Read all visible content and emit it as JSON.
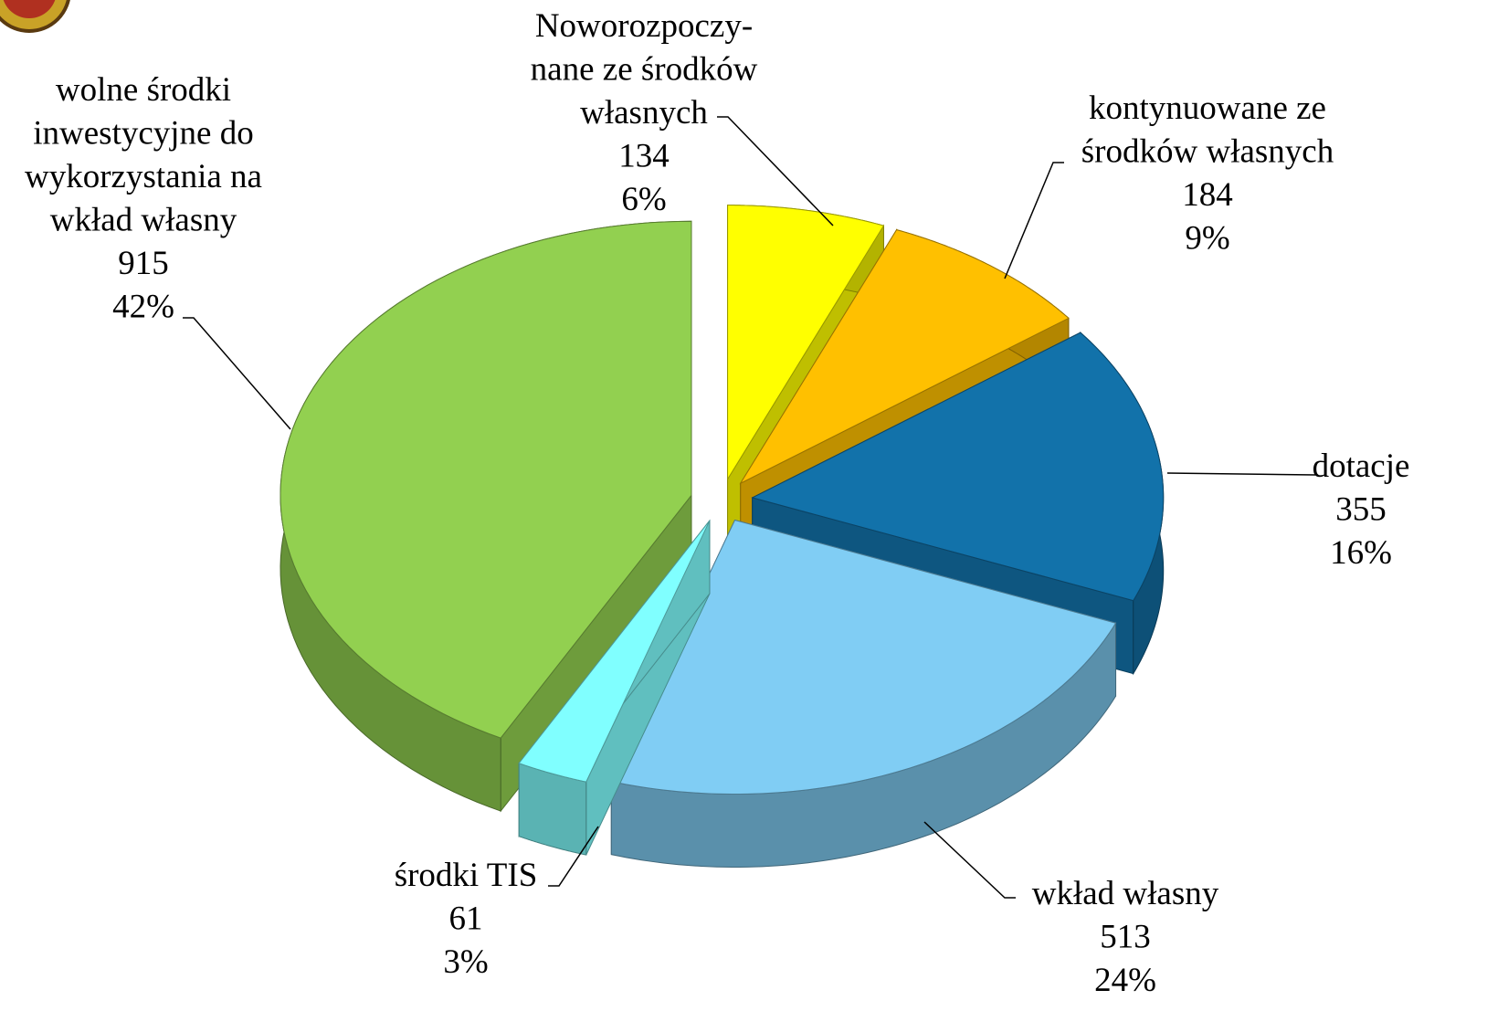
{
  "chart_data": {
    "type": "pie",
    "categories": [
      "Noworozpoczy-\nnane ze środków\nwłasnych",
      "kontynuowane ze\nśrodków własnych",
      "dotacje",
      "wkład własny",
      "środki TIS",
      "wolne środki\ninwestycyjne do\nwykorzystania na\nwkład własny"
    ],
    "values": [
      134,
      184,
      355,
      513,
      61,
      915
    ],
    "percent_labels": [
      "6%",
      "9%",
      "16%",
      "24%",
      "3%",
      "42%"
    ],
    "colors": [
      "#ffff00",
      "#ffc000",
      "#1272aa",
      "#80cdf4",
      "#80ffff",
      "#92d050"
    ]
  }
}
